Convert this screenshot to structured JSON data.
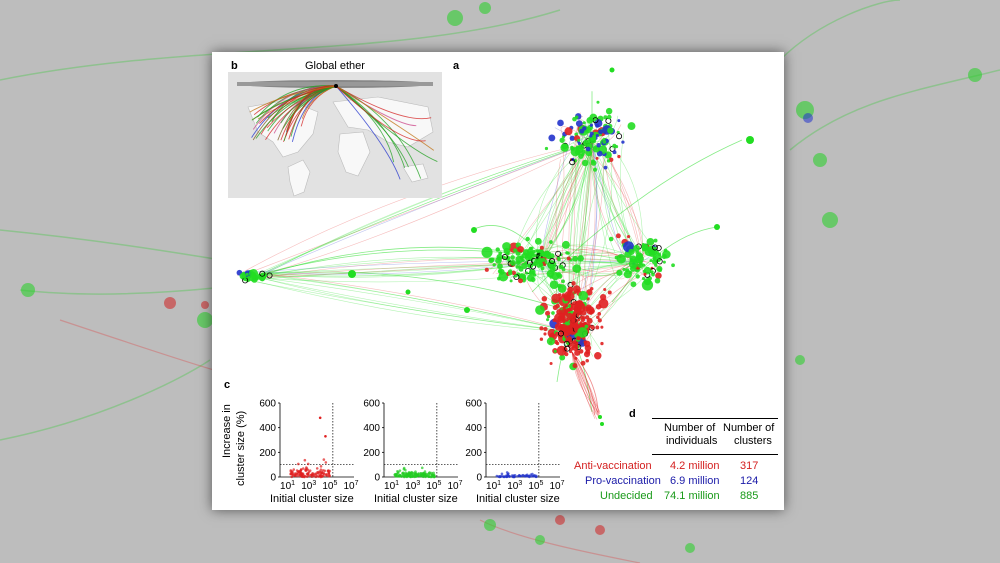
{
  "panels": {
    "a": {
      "letter": "a"
    },
    "b": {
      "letter": "b",
      "title": "Global ether"
    },
    "c": {
      "letter": "c",
      "ylabel_line1": "Increase in",
      "ylabel_line2": "cluster size (%)",
      "yticks": [
        "600",
        "400",
        "200",
        "0"
      ],
      "xlabel": "Initial cluster size",
      "xtick_bases": [
        "10",
        "10",
        "10",
        "10"
      ],
      "xtick_exps": [
        "1",
        "3",
        "5",
        "7"
      ]
    },
    "d": {
      "letter": "d",
      "col1_header_line1": "Number of",
      "col1_header_line2": "individuals",
      "col2_header_line1": "Number of",
      "col2_header_line2": "clusters",
      "rows": [
        {
          "label": "Anti-vaccination",
          "individuals": "4.2 million",
          "clusters": "317",
          "color": "#d42020"
        },
        {
          "label": "Pro-vaccination",
          "individuals": "6.9 million",
          "clusters": "124",
          "color": "#1a1aa8"
        },
        {
          "label": "Undecided",
          "individuals": "74.1 million",
          "clusters": "885",
          "color": "#1a9a1a"
        }
      ]
    }
  },
  "colors": {
    "anti": "#e02020",
    "pro": "#2233cc",
    "undecided": "#22dd22"
  },
  "chart_data": [
    {
      "type": "scatter",
      "series": [
        {
          "color": "#e02020"
        }
      ],
      "ylim": [
        0,
        600
      ],
      "xscale": "log",
      "xlim": [
        1,
        10000000
      ],
      "grid": false
    },
    {
      "type": "scatter",
      "series": [
        {
          "color": "#22cc22"
        }
      ],
      "ylim": [
        0,
        600
      ],
      "xscale": "log",
      "xlim": [
        1,
        10000000
      ],
      "grid": false
    },
    {
      "type": "scatter",
      "series": [
        {
          "color": "#2233cc"
        }
      ],
      "ylim": [
        0,
        600
      ],
      "xscale": "log",
      "xlim": [
        1,
        10000000
      ],
      "grid": false
    }
  ]
}
